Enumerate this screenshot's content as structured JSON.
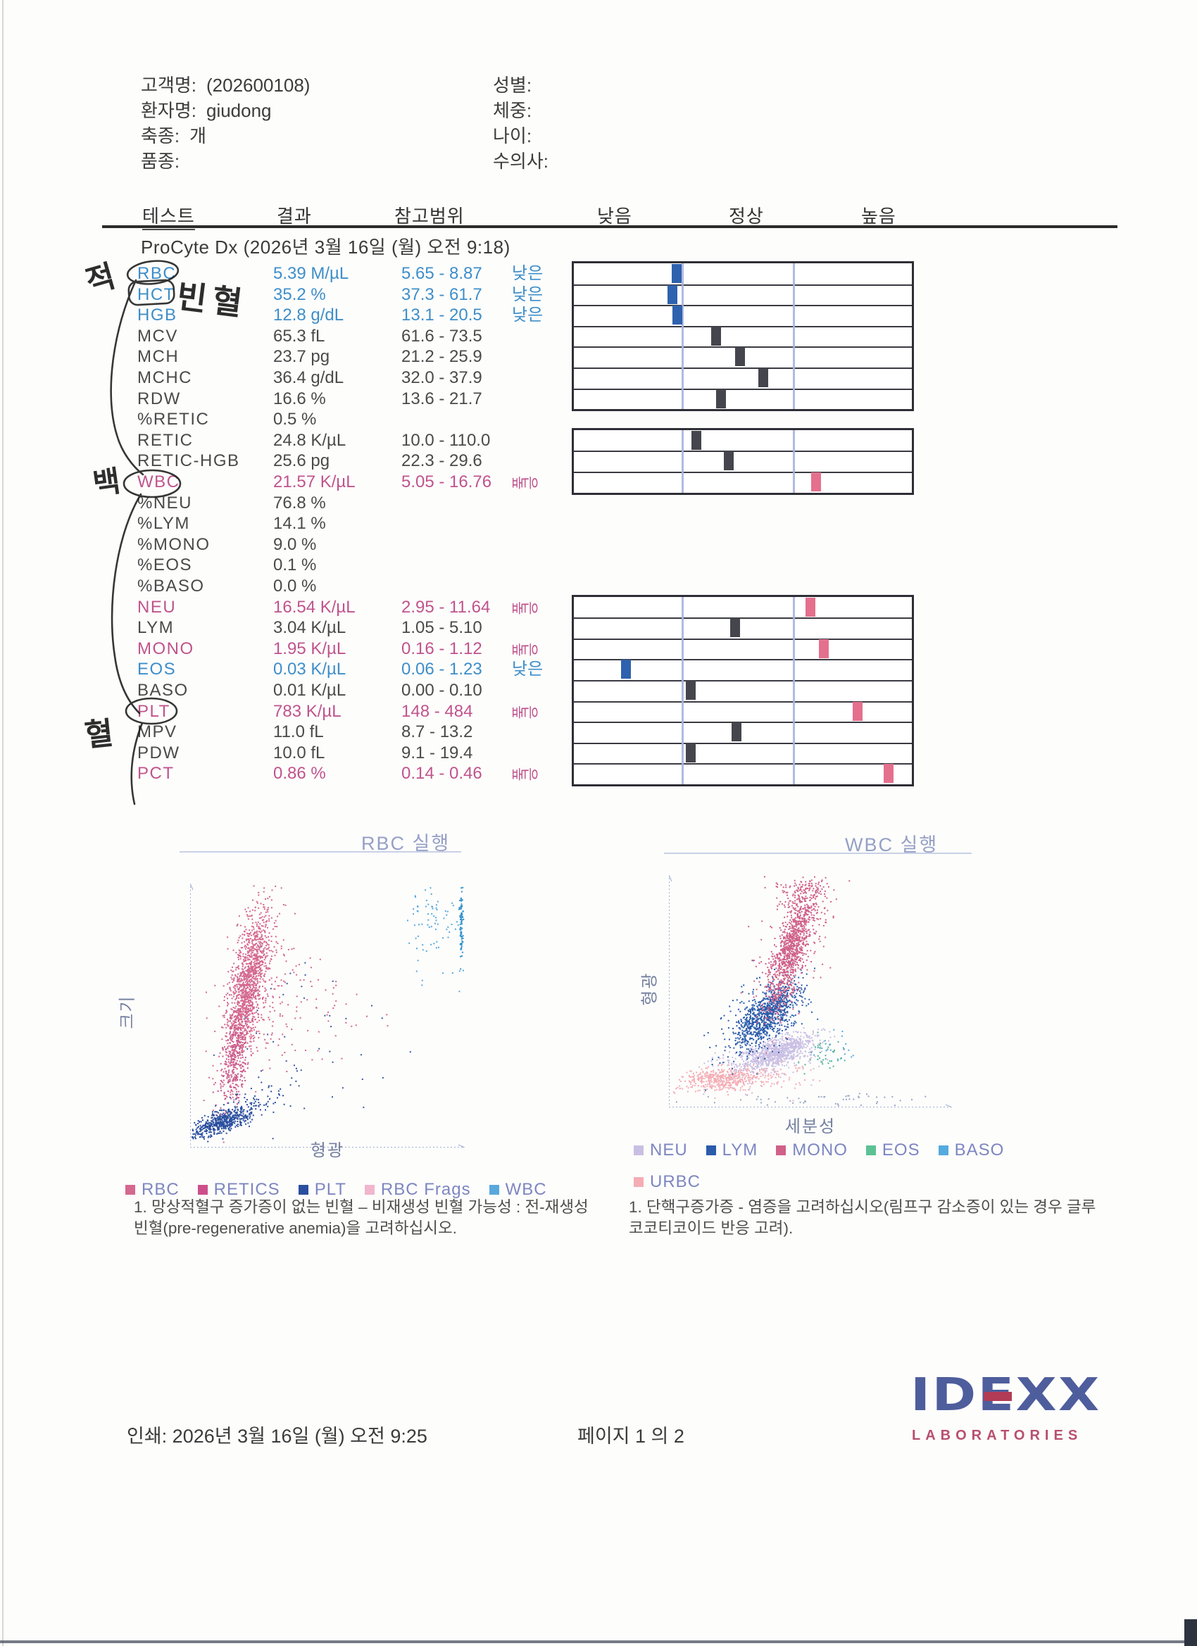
{
  "patient": {
    "left": [
      {
        "label": "고객명:",
        "value": "(202600108)"
      },
      {
        "label": "환자명:",
        "value": "giudong"
      },
      {
        "label": "축종:",
        "value": "개"
      },
      {
        "label": "품종:",
        "value": ""
      }
    ],
    "right": [
      {
        "label": "성별:",
        "value": ""
      },
      {
        "label": "체중:",
        "value": ""
      },
      {
        "label": "나이:",
        "value": ""
      },
      {
        "label": "수의사:",
        "value": ""
      }
    ]
  },
  "table": {
    "headers": [
      "테스트",
      "결과",
      "참고범위",
      "낮음",
      "정상",
      "높음"
    ],
    "section_title": "ProCyte Dx (2026년 3월 16일 (월) 오전 9:18)",
    "rows": [
      {
        "name": "RBC",
        "result": "5.39 M/µL",
        "range": "5.65 - 8.87",
        "flag": "낮은",
        "rot": false,
        "color": "blue",
        "marker": {
          "g": 0,
          "r": 0,
          "pos": 0.307,
          "color": "blue"
        }
      },
      {
        "name": "HCT",
        "result": "35.2 %",
        "range": "37.3 - 61.7",
        "flag": "낮은",
        "rot": false,
        "color": "blue",
        "marker": {
          "g": 0,
          "r": 1,
          "pos": 0.295,
          "color": "blue"
        }
      },
      {
        "name": "HGB",
        "result": "12.8 g/dL",
        "range": "13.1 - 20.5",
        "flag": "낮은",
        "rot": false,
        "color": "blue",
        "marker": {
          "g": 0,
          "r": 2,
          "pos": 0.31,
          "color": "blue"
        }
      },
      {
        "name": "MCV",
        "result": "65.3 fL",
        "range": "61.6 - 73.5",
        "flag": "",
        "rot": false,
        "color": "dark",
        "marker": {
          "g": 0,
          "r": 3,
          "pos": 0.426,
          "color": "dark"
        }
      },
      {
        "name": "MCH",
        "result": "23.7 pg",
        "range": "21.2 - 25.9",
        "flag": "",
        "rot": false,
        "color": "dark",
        "marker": {
          "g": 0,
          "r": 4,
          "pos": 0.497,
          "color": "dark"
        }
      },
      {
        "name": "MCHC",
        "result": "36.4 g/dL",
        "range": "32.0 - 37.9",
        "flag": "",
        "rot": false,
        "color": "dark",
        "marker": {
          "g": 0,
          "r": 5,
          "pos": 0.567,
          "color": "dark"
        }
      },
      {
        "name": "RDW",
        "result": "16.6 %",
        "range": "13.6 - 21.7",
        "flag": "",
        "rot": false,
        "color": "dark",
        "marker": {
          "g": 0,
          "r": 6,
          "pos": 0.441,
          "color": "dark"
        }
      },
      {
        "name": "%RETIC",
        "result": "0.5 %",
        "range": "",
        "flag": "",
        "rot": false,
        "color": "dark",
        "marker": null
      },
      {
        "name": "RETIC",
        "result": "24.8 K/µL",
        "range": "10.0 - 110.0",
        "flag": "",
        "rot": false,
        "color": "dark",
        "marker": {
          "g": 1,
          "r": 0,
          "pos": 0.368,
          "color": "dark"
        }
      },
      {
        "name": "RETIC-HGB",
        "result": "25.6 pg",
        "range": "22.3 - 29.6",
        "flag": "",
        "rot": false,
        "color": "dark",
        "marker": {
          "g": 1,
          "r": 1,
          "pos": 0.465,
          "color": "dark"
        }
      },
      {
        "name": "WBC",
        "result": "21.57 K/µL",
        "range": "5.05 - 16.76",
        "flag": "높은",
        "rot": true,
        "color": "pink",
        "marker": {
          "g": 1,
          "r": 2,
          "pos": 0.726,
          "color": "pink"
        }
      },
      {
        "name": "%NEU",
        "result": "76.8 %",
        "range": "",
        "flag": "",
        "rot": false,
        "color": "dark",
        "marker": null
      },
      {
        "name": "%LYM",
        "result": "14.1 %",
        "range": "",
        "flag": "",
        "rot": false,
        "color": "dark",
        "marker": null
      },
      {
        "name": "%MONO",
        "result": "9.0 %",
        "range": "",
        "flag": "",
        "rot": false,
        "color": "dark",
        "marker": null
      },
      {
        "name": "%EOS",
        "result": "0.1 %",
        "range": "",
        "flag": "",
        "rot": false,
        "color": "dark",
        "marker": null
      },
      {
        "name": "%BASO",
        "result": "0.0 %",
        "range": "",
        "flag": "",
        "rot": false,
        "color": "dark",
        "marker": null
      },
      {
        "name": "NEU",
        "result": "16.54 K/µL",
        "range": "2.95 - 11.64",
        "flag": "높은",
        "rot": true,
        "color": "pink",
        "marker": {
          "g": 2,
          "r": 0,
          "pos": 0.709,
          "color": "pink"
        }
      },
      {
        "name": "LYM",
        "result": "3.04 K/µL",
        "range": "1.05 - 5.10",
        "flag": "",
        "rot": false,
        "color": "dark",
        "marker": {
          "g": 2,
          "r": 1,
          "pos": 0.484,
          "color": "dark"
        }
      },
      {
        "name": "MONO",
        "result": "1.95 K/µL",
        "range": "0.16 - 1.12",
        "flag": "높은",
        "rot": true,
        "color": "pink",
        "marker": {
          "g": 2,
          "r": 2,
          "pos": 0.749,
          "color": "pink"
        }
      },
      {
        "name": "EOS",
        "result": "0.03 K/µL",
        "range": "0.06 - 1.23",
        "flag": "낮은",
        "rot": false,
        "color": "blue",
        "marker": {
          "g": 2,
          "r": 3,
          "pos": 0.156,
          "color": "blue"
        }
      },
      {
        "name": "BASO",
        "result": "0.01 K/µL",
        "range": "0.00 - 0.10",
        "flag": "",
        "rot": false,
        "color": "dark",
        "marker": {
          "g": 2,
          "r": 4,
          "pos": 0.351,
          "color": "dark"
        }
      },
      {
        "name": "PLT",
        "result": "783 K/µL",
        "range": "148 - 484",
        "flag": "높은",
        "rot": true,
        "color": "pink",
        "marker": {
          "g": 2,
          "r": 5,
          "pos": 0.851,
          "color": "pink"
        }
      },
      {
        "name": "MPV",
        "result": "11.0 fL",
        "range": "8.7 - 13.2",
        "flag": "",
        "rot": false,
        "color": "dark",
        "marker": {
          "g": 2,
          "r": 6,
          "pos": 0.487,
          "color": "dark"
        }
      },
      {
        "name": "PDW",
        "result": "10.0 fL",
        "range": "9.1 - 19.4",
        "flag": "",
        "rot": false,
        "color": "dark",
        "marker": {
          "g": 2,
          "r": 7,
          "pos": 0.351,
          "color": "dark"
        }
      },
      {
        "name": "PCT",
        "result": "0.86 %",
        "range": "0.14 - 0.46",
        "flag": "높은",
        "rot": true,
        "color": "pink",
        "marker": {
          "g": 2,
          "r": 8,
          "pos": 0.944,
          "color": "pink"
        }
      }
    ]
  },
  "colors": {
    "blue": "#3e8ec9",
    "pink": "#c0548c",
    "dark": "#4a4a4a",
    "marker_blue": "#2e62ae",
    "marker_pink": "#e4708e",
    "marker_dark": "#45454d",
    "zone": "#a9b3e0"
  },
  "annotations": {
    "jeok": "적",
    "binhyeol": "빈혈",
    "baek": "백",
    "hyeol": "혈"
  },
  "chart_data": [
    {
      "id": "rbc",
      "type": "scatter",
      "title": "RBC 실행",
      "xlabel": "형광",
      "ylabel": "크기",
      "legend_rows": [
        [
          {
            "label": "RBC",
            "color": "#d4688e"
          },
          {
            "label": "RETICS",
            "color": "#cc4f8a"
          },
          {
            "label": "PLT",
            "color": "#2a4f9e"
          },
          {
            "label": "RBC Frags",
            "color": "#f0b6cd"
          },
          {
            "label": "WBC",
            "color": "#58a8dc"
          }
        ]
      ],
      "clusters": [
        {
          "color": "#3c5a9c",
          "n": 45,
          "cx": 0.45,
          "cy": 0.55,
          "sx": 0.17,
          "sy": 0.17,
          "tilt": 0,
          "size": 2
        },
        {
          "color": "#d4688e",
          "n": 350,
          "cx": 0.215,
          "cy": 0.42,
          "sx": 0.055,
          "sy": 0.2,
          "tilt": -0.18,
          "size": 2
        },
        {
          "color": "#d4688e",
          "n": 1250,
          "cx": 0.205,
          "cy": 0.4,
          "sx": 0.028,
          "sy": 0.155,
          "tilt": -0.18,
          "size": 2
        },
        {
          "color": "#c7558a",
          "n": 200,
          "cx": 0.16,
          "cy": 0.68,
          "sx": 0.022,
          "sy": 0.09,
          "tilt": -0.12,
          "size": 2
        },
        {
          "color": "#d4688e",
          "n": 80,
          "cx": 0.4,
          "cy": 0.46,
          "sx": 0.11,
          "sy": 0.1,
          "tilt": 0,
          "size": 2
        },
        {
          "color": "#2a4f9e",
          "n": 90,
          "cx": 0.22,
          "cy": 0.835,
          "sx": 0.055,
          "sy": 0.045,
          "tilt": -1.0,
          "size": 2
        },
        {
          "color": "#2a4f9e",
          "n": 500,
          "cx": 0.115,
          "cy": 0.9,
          "sx": 0.04,
          "sy": 0.03,
          "tilt": -1.4,
          "size": 2
        },
        {
          "color": "#58a8dc",
          "n": 70,
          "cx": 0.875,
          "cy": 0.14,
          "sx": 0.055,
          "sy": 0.07,
          "tilt": 0,
          "size": 2
        },
        {
          "color": "#3594cc",
          "n": 90,
          "cx": 0.985,
          "cy": 0.15,
          "sx": 0.003,
          "sy": 0.065,
          "tilt": 0,
          "size": 2
        },
        {
          "color": "#58a8dc",
          "n": 10,
          "cx": 0.93,
          "cy": 0.33,
          "sx": 0.05,
          "sy": 0.05,
          "tilt": 0,
          "size": 2
        }
      ]
    },
    {
      "id": "wbc",
      "type": "scatter",
      "title": "WBC 실행",
      "xlabel": "세분성",
      "ylabel": "형광",
      "legend_rows": [
        [
          {
            "label": "NEU",
            "color": "#c9bfe4"
          },
          {
            "label": "LYM",
            "color": "#2b5cab"
          },
          {
            "label": "MONO",
            "color": "#cf6189"
          },
          {
            "label": "EOS",
            "color": "#5cc194"
          },
          {
            "label": "BASO",
            "color": "#55aade"
          }
        ],
        [
          {
            "label": "URBC",
            "color": "#f5adb4"
          }
        ]
      ],
      "clusters": [
        {
          "color": "#9aa6c4",
          "n": 50,
          "cx": 0.55,
          "cy": 0.965,
          "sx": 0.22,
          "sy": 0.015,
          "tilt": 0,
          "size": 2
        },
        {
          "color": "#c9bfe4",
          "n": 200,
          "cx": 0.36,
          "cy": 0.78,
          "sx": 0.09,
          "sy": 0.05,
          "tilt": -1.0,
          "size": 2
        },
        {
          "color": "#f5adb4",
          "n": 130,
          "cx": 0.3,
          "cy": 0.87,
          "sx": 0.09,
          "sy": 0.03,
          "tilt": -0.3,
          "size": 2
        },
        {
          "color": "#f5adb4",
          "n": 400,
          "cx": 0.175,
          "cy": 0.875,
          "sx": 0.065,
          "sy": 0.025,
          "tilt": -0.3,
          "size": 2
        },
        {
          "color": "#c9bfe4",
          "n": 800,
          "cx": 0.375,
          "cy": 0.76,
          "sx": 0.05,
          "sy": 0.04,
          "tilt": -1.1,
          "size": 2
        },
        {
          "color": "#2b5cab",
          "n": 260,
          "cx": 0.335,
          "cy": 0.6,
          "sx": 0.07,
          "sy": 0.1,
          "tilt": -0.5,
          "size": 2
        },
        {
          "color": "#2b5cab",
          "n": 750,
          "cx": 0.345,
          "cy": 0.6,
          "sx": 0.04,
          "sy": 0.07,
          "tilt": -0.5,
          "size": 2
        },
        {
          "color": "#cf6189",
          "n": 240,
          "cx": 0.435,
          "cy": 0.3,
          "sx": 0.06,
          "sy": 0.17,
          "tilt": -0.26,
          "size": 2
        },
        {
          "color": "#cf6189",
          "n": 950,
          "cx": 0.435,
          "cy": 0.3,
          "sx": 0.028,
          "sy": 0.13,
          "tilt": -0.26,
          "size": 2
        },
        {
          "color": "#cf6189",
          "n": 60,
          "cx": 0.46,
          "cy": 0.05,
          "sx": 0.05,
          "sy": 0.015,
          "tilt": 0,
          "size": 2
        },
        {
          "color": "#4fb39a",
          "n": 40,
          "cx": 0.545,
          "cy": 0.76,
          "sx": 0.035,
          "sy": 0.035,
          "tilt": 0,
          "size": 2
        },
        {
          "color": "#55aade",
          "n": 16,
          "cx": 0.6,
          "cy": 0.735,
          "sx": 0.045,
          "sy": 0.04,
          "tilt": 0,
          "size": 2
        }
      ]
    }
  ],
  "notes": {
    "left": "1. 망상적혈구 증가증이 없는 빈혈 – 비재생성 빈혈 가능성 : 전-재생성 빈혈(pre-regenerative anemia)을 고려하십시오.",
    "right": "1. 단핵구증가증 - 염증을 고려하십시오(림프구 감소증이 있는 경우 글루코코티코이드 반응 고려)."
  },
  "footer": {
    "printed": "인쇄: 2026년 3월 16일 (월) 오전 9:25",
    "page": "페이지 1 의 2",
    "logo_line1": "IDEXX",
    "logo_line2": "LABORATORIES"
  }
}
